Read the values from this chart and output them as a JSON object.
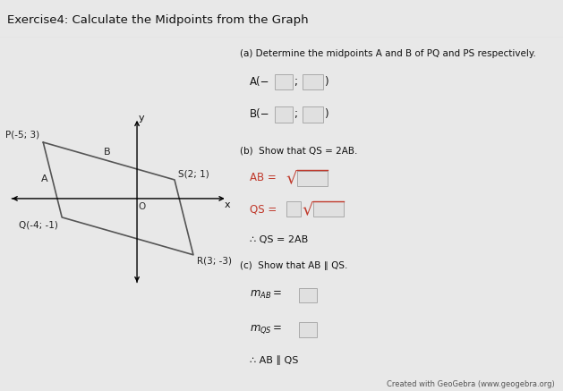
{
  "title": "Exercise4: Calculate the Midpoints from the Graph",
  "bg_color": "#e8e8e8",
  "panel_bg": "#f5f5f5",
  "points": {
    "P": [
      -5,
      3
    ],
    "Q": [
      -4,
      -1
    ],
    "R": [
      3,
      -3
    ],
    "S": [
      2,
      1
    ]
  },
  "graph_color": "#555555",
  "geogebra_text": "Created with GeoGebra (www.geogebra.org)"
}
